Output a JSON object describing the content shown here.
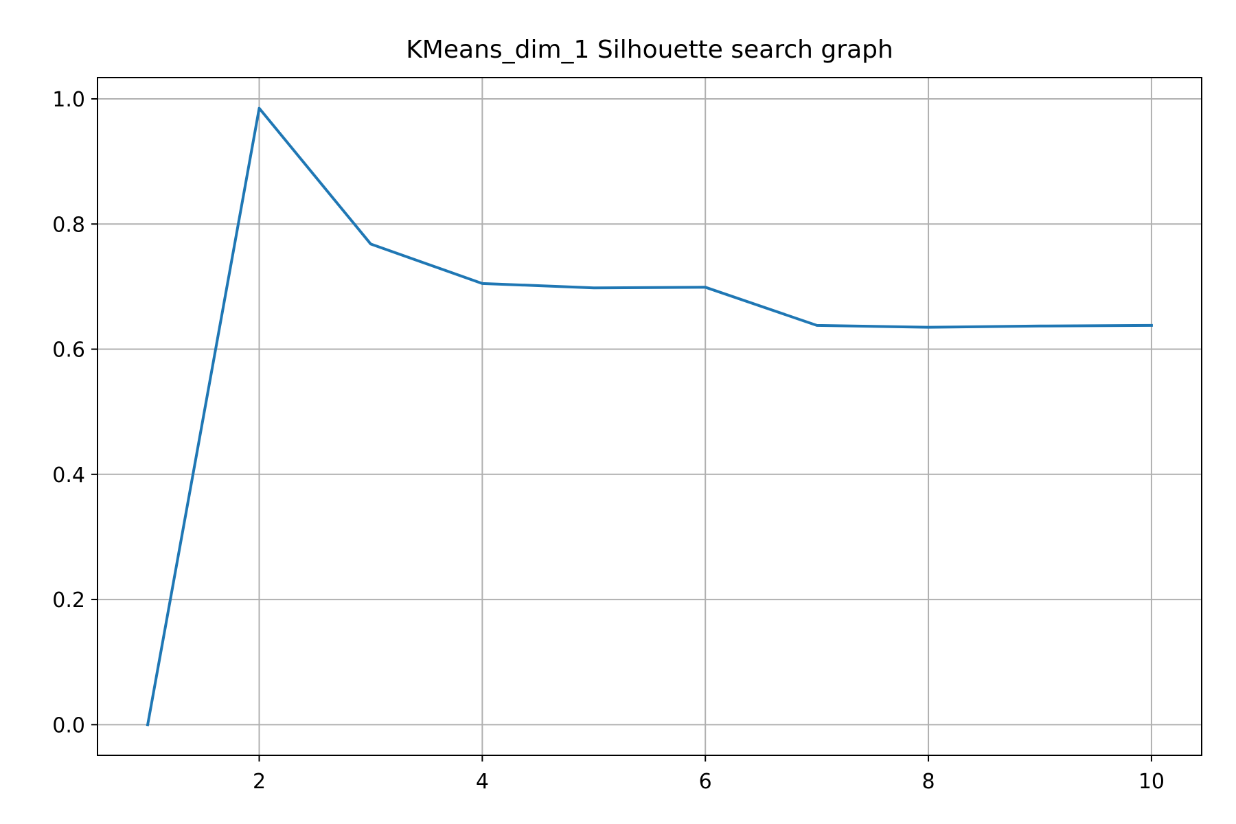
{
  "chart_data": {
    "type": "line",
    "title": "KMeans_dim_1 Silhouette search graph",
    "xlabel": "",
    "ylabel": "",
    "x": [
      1,
      2,
      3,
      4,
      5,
      6,
      7,
      8,
      9,
      10
    ],
    "series": [
      {
        "values": [
          0.0,
          0.985,
          0.768,
          0.705,
          0.698,
          0.699,
          0.638,
          0.635,
          0.637,
          0.638
        ],
        "color": "#1f77b4"
      }
    ],
    "xlim": [
      0.55,
      10.45
    ],
    "ylim": [
      -0.049,
      1.034
    ],
    "xticks": [
      2,
      4,
      6,
      8,
      10
    ],
    "xtick_labels": [
      "2",
      "4",
      "6",
      "8",
      "10"
    ],
    "yticks": [
      0.0,
      0.2,
      0.4,
      0.6,
      0.8,
      1.0
    ],
    "ytick_labels": [
      "0.0",
      "0.2",
      "0.4",
      "0.6",
      "0.8",
      "1.0"
    ],
    "grid": true,
    "grid_color": "#b0b0b0",
    "axes_color": "#000000",
    "legend": false
  }
}
